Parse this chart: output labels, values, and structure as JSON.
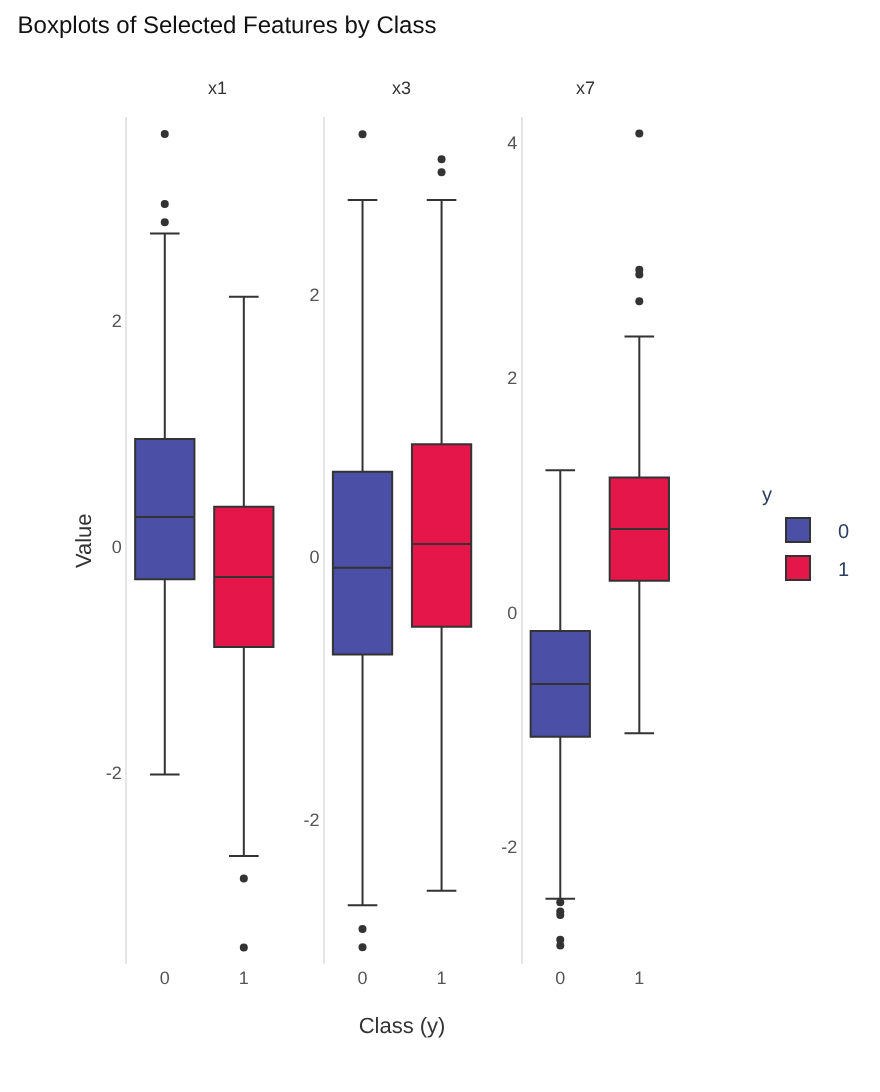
{
  "chart_data": [
    {
      "type": "box",
      "title": "Boxplots of Selected Features by Class",
      "subtitle": "x1",
      "ylabel": "Value",
      "categories": [
        "0",
        "1"
      ],
      "ylim": [
        -3.7,
        3.8
      ],
      "yticks": [
        -2,
        0,
        2
      ],
      "series": [
        {
          "color": "#4b4fa6",
          "boxes": [
            {
              "low": -2.02,
              "q1": -0.29,
              "median": 0.26,
              "q3": 0.95,
              "high": 2.77,
              "outliers": [
                3.65,
                3.03,
                2.87
              ]
            },
            null
          ]
        },
        {
          "color": "#e5174a",
          "boxes": [
            null,
            {
              "low": -2.74,
              "q1": -0.89,
              "median": -0.27,
              "q3": 0.35,
              "high": 2.21,
              "outliers": [
                -2.94,
                -3.55
              ]
            }
          ]
        }
      ]
    },
    {
      "type": "box",
      "subtitle": "x3",
      "xlabel": "Class (y)",
      "categories": [
        "0",
        "1"
      ],
      "ylim": [
        -3.1,
        3.35
      ],
      "yticks": [
        -2,
        0,
        2
      ],
      "series": [
        {
          "color": "#4b4fa6",
          "boxes": [
            {
              "low": -2.65,
              "q1": -0.74,
              "median": -0.08,
              "q3": 0.65,
              "high": 2.72,
              "outliers": [
                3.22,
                -2.83,
                -2.97
              ]
            },
            null
          ]
        },
        {
          "color": "#e5174a",
          "boxes": [
            null,
            {
              "low": -2.54,
              "q1": -0.53,
              "median": 0.1,
              "q3": 0.86,
              "high": 2.72,
              "outliers": [
                3.03,
                2.93
              ]
            }
          ]
        }
      ]
    },
    {
      "type": "box",
      "subtitle": "x7",
      "legend_title": "y",
      "categories": [
        "0",
        "1"
      ],
      "ylim": [
        -3.0,
        4.22
      ],
      "yticks": [
        -2,
        0,
        2,
        4
      ],
      "legend": "right",
      "series": [
        {
          "name": "0",
          "color": "#4b4fa6",
          "boxes": [
            {
              "low": -2.44,
              "q1": -1.06,
              "median": -0.61,
              "q3": -0.16,
              "high": 1.21,
              "outliers": [
                -2.47,
                -2.55,
                -2.58,
                -2.79,
                -2.84
              ]
            },
            null
          ]
        },
        {
          "name": "1",
          "color": "#e5174a",
          "boxes": [
            null,
            {
              "low": -1.03,
              "q1": 0.27,
              "median": 0.71,
              "q3": 1.15,
              "high": 2.35,
              "outliers": [
                4.08,
                2.92,
                2.88,
                2.65
              ]
            }
          ]
        }
      ]
    }
  ]
}
